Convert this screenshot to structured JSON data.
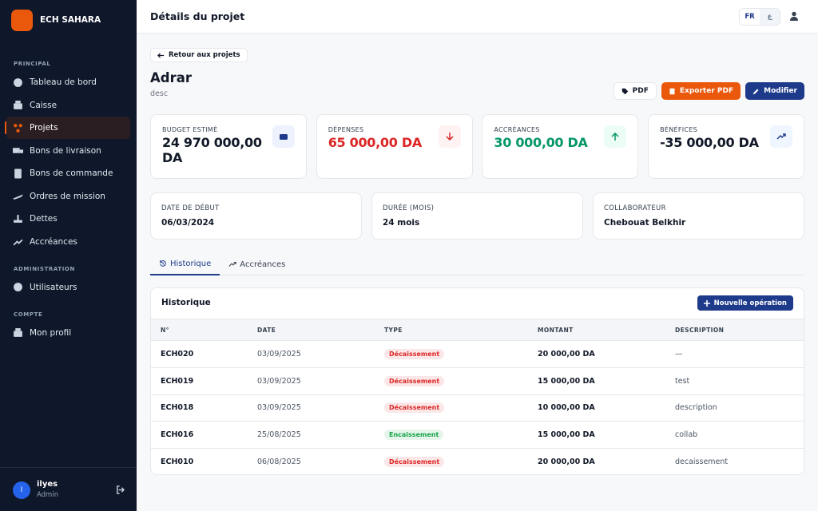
{
  "sidebar": {
    "brand": "ECH SAHARA",
    "sections": [
      {
        "title": "PRINCIPAL",
        "items": [
          "Tableau de bord",
          "Caisse",
          "Projets",
          "Bons de livraison",
          "Bons de commande",
          "Ordres de mission",
          "Dettes",
          "Accréances"
        ]
      },
      {
        "title": "ADMINISTRATION",
        "items": [
          "Utilisateurs"
        ]
      },
      {
        "title": "COMPTE",
        "items": [
          "Mon profil"
        ]
      }
    ],
    "active": "Projets",
    "user": {
      "initial": "I",
      "name": "ilyes",
      "role": "Admin"
    }
  },
  "header": {
    "title": "Détails du projet",
    "languages": [
      "FR",
      "ع"
    ]
  },
  "back": "Retour aux projets",
  "project": {
    "name": "Adrar",
    "description": "desc"
  },
  "actions": [
    "PDF",
    "Exporter PDF",
    "Modifier"
  ],
  "stats": [
    {
      "label": "BUDGET ESTIMÉ",
      "value": "24 970 000,00 DA",
      "color": "#111827"
    },
    {
      "label": "DÉPENSES",
      "value": "65 000,00 DA",
      "color": "#dc2626"
    },
    {
      "label": "ACCRÉANCES",
      "value": "30 000,00 DA",
      "color": "#059669"
    },
    {
      "label": "BÉNÉFICES",
      "value": "-35 000,00 DA",
      "color": "#111827"
    }
  ],
  "info": [
    {
      "label": "DATE DE DÉBUT",
      "value": "06/03/2024"
    },
    {
      "label": "DURÉE (MOIS)",
      "value": "24 mois"
    },
    {
      "label": "COLLABORATEUR",
      "value": "Chebouat Belkhir"
    }
  ],
  "tabs": [
    "Historique",
    "Accréances"
  ],
  "table": {
    "title": "Historique",
    "button": "Nouvelle opération",
    "columns": [
      "N°",
      "DATE",
      "TYPE",
      "MONTANT",
      "DESCRIPTION"
    ],
    "rows": [
      {
        "id": "ECH020",
        "date": "03/09/2025",
        "type": "Décaissement",
        "type_color": "#dc2626",
        "amount": "20 000,00 DA",
        "description": "—"
      },
      {
        "id": "ECH019",
        "date": "03/09/2025",
        "type": "Décaissement",
        "type_color": "#dc2626",
        "amount": "15 000,00 DA",
        "description": "test"
      },
      {
        "id": "ECH018",
        "date": "03/09/2025",
        "type": "Décaissement",
        "type_color": "#dc2626",
        "amount": "10 000,00 DA",
        "description": "description"
      },
      {
        "id": "ECH016",
        "date": "25/08/2025",
        "type": "Encaissement",
        "type_color": "#16a34a",
        "amount": "15 000,00 DA",
        "description": "collab"
      },
      {
        "id": "ECH010",
        "date": "06/08/2025",
        "type": "Décaissement",
        "type_color": "#dc2626",
        "amount": "20 000,00 DA",
        "description": "decaissement"
      }
    ]
  }
}
